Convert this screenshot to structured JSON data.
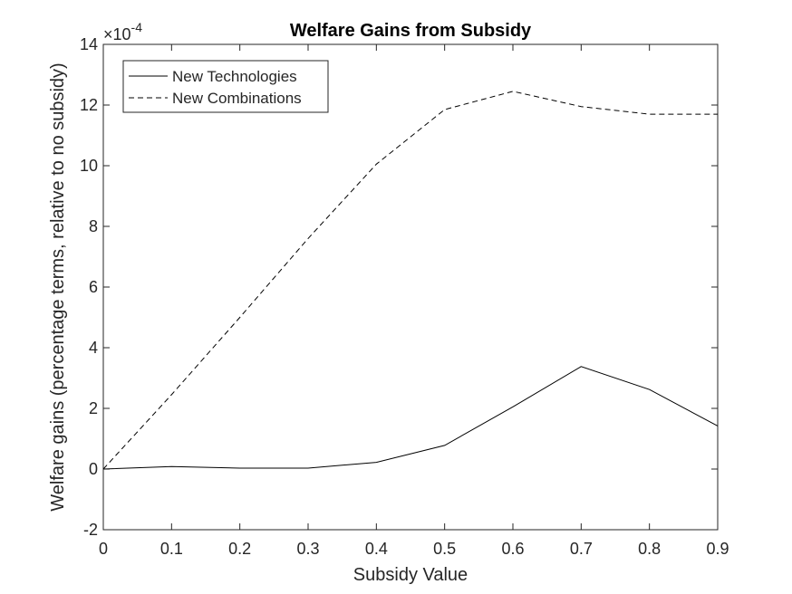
{
  "chart_data": {
    "type": "line",
    "title": "Welfare Gains from Subsidy",
    "xlabel": "Subsidy Value",
    "ylabel": "Welfare gains (percentage terms, relative to no subsidy)",
    "y_exponent_label": "×10",
    "y_exponent_power": "-4",
    "xlim": [
      0,
      0.9
    ],
    "ylim": [
      -2,
      14
    ],
    "x_ticks": [
      "0",
      "0.1",
      "0.2",
      "0.3",
      "0.4",
      "0.5",
      "0.6",
      "0.7",
      "0.8",
      "0.9"
    ],
    "y_ticks": [
      "-2",
      "0",
      "2",
      "4",
      "6",
      "8",
      "10",
      "12",
      "14"
    ],
    "x_tick_values": [
      0,
      0.1,
      0.2,
      0.3,
      0.4,
      0.5,
      0.6,
      0.7,
      0.8,
      0.9
    ],
    "y_tick_values": [
      -2,
      0,
      2,
      4,
      6,
      8,
      10,
      12,
      14
    ],
    "x": [
      0,
      0.1,
      0.2,
      0.3,
      0.4,
      0.5,
      0.6,
      0.7,
      0.8,
      0.9
    ],
    "series": [
      {
        "name": "New Technologies",
        "style": "solid",
        "color": "#000000",
        "values": [
          0.0,
          0.08,
          0.03,
          0.03,
          0.22,
          0.78,
          2.05,
          3.38,
          2.62,
          1.42
        ]
      },
      {
        "name": "New Combinations",
        "style": "dashed",
        "color": "#000000",
        "values": [
          0.0,
          2.45,
          5.0,
          7.6,
          10.05,
          11.85,
          12.45,
          11.95,
          11.7,
          11.7
        ]
      }
    ],
    "grid": false,
    "legend_position": "top-left"
  }
}
